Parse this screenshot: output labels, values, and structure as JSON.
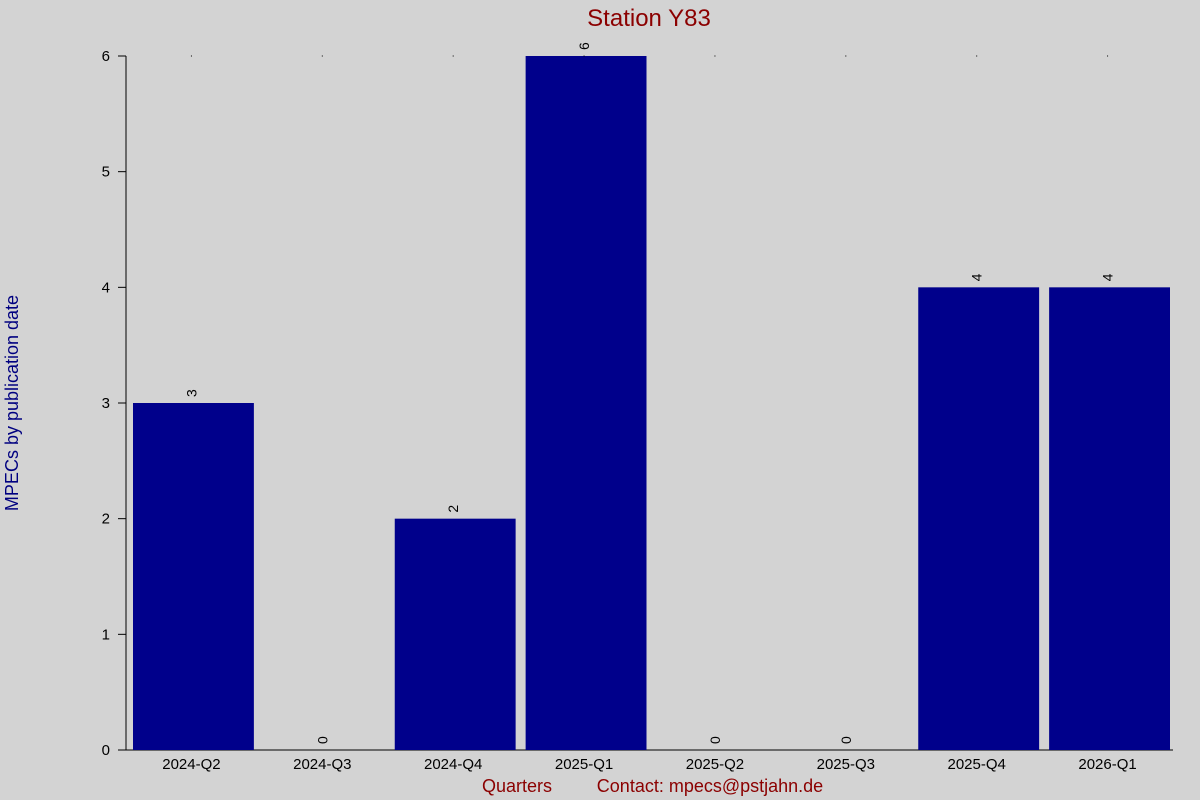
{
  "chart_data": {
    "type": "bar",
    "title": "Station Y83",
    "xlabel": "Quarters",
    "ylabel": "MPECs by publication date",
    "contact": "Contact: mpecs@pstjahn.de",
    "categories": [
      "2024-Q2",
      "2024-Q3",
      "2024-Q4",
      "2025-Q1",
      "2025-Q2",
      "2025-Q3",
      "2025-Q4",
      "2026-Q1"
    ],
    "values": [
      3,
      0,
      2,
      6,
      0,
      0,
      4,
      4
    ],
    "ylim": [
      0,
      6
    ],
    "yticks": [
      0,
      1,
      2,
      3,
      4,
      5,
      6
    ],
    "bar_color": "#00008b",
    "background": "#d3d3d3",
    "title_color": "#8b0000",
    "ylabel_color": "#000080",
    "grid": false,
    "legend": "none"
  }
}
